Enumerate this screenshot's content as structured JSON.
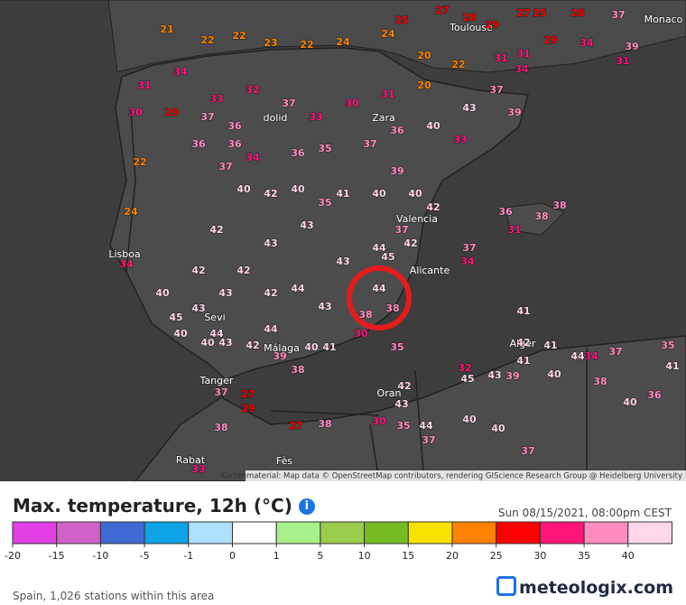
{
  "map": {
    "attribution": "Kartenmaterial: Map data © OpenStreetMap contributors, rendering GIScience Research Group @ Heidelberg University",
    "places": [
      "Monaco",
      "Toulouse",
      "Lisboa",
      "Alger",
      "Oran",
      "Rabat",
      "Fès",
      "Valencia",
      "Alicante",
      "Tanger",
      "Málaga",
      "Zara",
      "dolid",
      "Sevi"
    ],
    "stations": [
      21,
      22,
      22,
      23,
      22,
      24,
      24,
      25,
      27,
      28,
      29,
      27,
      25,
      28,
      37,
      29,
      31,
      34,
      39,
      31,
      31,
      34,
      22,
      20,
      22,
      24,
      34,
      40,
      40,
      42,
      42,
      42,
      43,
      43,
      41,
      40,
      39,
      40,
      42,
      37,
      37,
      34,
      41,
      42,
      41,
      41,
      40,
      32,
      45,
      43,
      39,
      40,
      40,
      37,
      44,
      34,
      38,
      40,
      36,
      41,
      35,
      37,
      35,
      41,
      40,
      38,
      39,
      42,
      43,
      40,
      37,
      27,
      29,
      38,
      27,
      38,
      30,
      35,
      44,
      37,
      43,
      42,
      30,
      38,
      38,
      43,
      44,
      42,
      43,
      43,
      45,
      44,
      44,
      43,
      44,
      42,
      45,
      44,
      40,
      42,
      40,
      35,
      37,
      34,
      36,
      35,
      37,
      36,
      40,
      43,
      37,
      39,
      33,
      33,
      32,
      37,
      33,
      30,
      31,
      20,
      31,
      30,
      29,
      34,
      37,
      36,
      36,
      36,
      36,
      38,
      38,
      31,
      33
    ]
  },
  "legend": {
    "title": "Max. temperature, 12h (°C)",
    "timestamp": "Sun 08/15/2021, 08:00pm CEST",
    "bins": [
      {
        "value": -20,
        "color": "#e23ee6"
      },
      {
        "value": -15,
        "color": "#d061c8"
      },
      {
        "value": -10,
        "color": "#4169d4"
      },
      {
        "value": -5,
        "color": "#0ea2e6"
      },
      {
        "value": -1,
        "color": "#aee0fc"
      },
      {
        "value": 0,
        "color": "#ffffff"
      },
      {
        "value": 1,
        "color": "#a8f08a"
      },
      {
        "value": 5,
        "color": "#9ccc4c"
      },
      {
        "value": 10,
        "color": "#78bc24"
      },
      {
        "value": 15,
        "color": "#f6e100"
      },
      {
        "value": 20,
        "color": "#ff8200"
      },
      {
        "value": 25,
        "color": "#ff0000"
      },
      {
        "value": 30,
        "color": "#ff1478"
      },
      {
        "value": 35,
        "color": "#ff8cc0"
      },
      {
        "value": 40,
        "color": "#ffd6ea"
      }
    ]
  },
  "footer": {
    "stations": "Spain, 1,026 stations within this area",
    "logo": "meteologix.com"
  }
}
